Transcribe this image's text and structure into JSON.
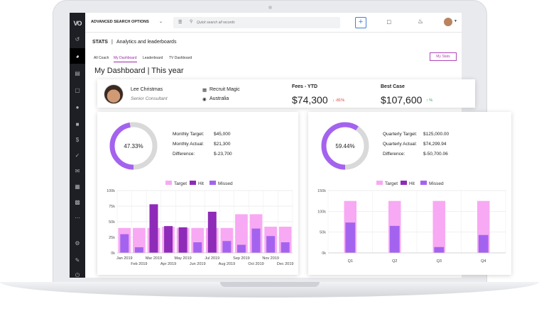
{
  "topbar": {
    "search_mode": "ADVANCED SEARCH OPTIONS",
    "search_placeholder": "Quick search all records"
  },
  "page": {
    "section": "STATS",
    "section_sub": "Analytics and leaderboards",
    "tabs": [
      "All Coach",
      "My Dashboard",
      "Leaderboard",
      "TV Dashboard"
    ],
    "active_tab": "My Dashboard",
    "my_stats_button": "My Stats",
    "dashboard_title": "My Dashboard | This year"
  },
  "profile": {
    "name": "Lee Christmas",
    "role": "Senior Consultant",
    "company": "Recruit Magic",
    "location": "Australia"
  },
  "kpis": [
    {
      "label": "Fees - YTD",
      "value": "$74,300",
      "delta": "-81%",
      "direction": "down",
      "color": "#e0322b"
    },
    {
      "label": "Best Case",
      "value": "$107,600",
      "delta": "%",
      "direction": "up",
      "color": "#2ea44f"
    }
  ],
  "monthly": {
    "percent_label": "47.33%",
    "percent": 47.33,
    "rows": [
      {
        "label": "Monthly Target:",
        "value": "$45,000"
      },
      {
        "label": "Monthly Actual:",
        "value": "$21,300"
      },
      {
        "label": "Difference:",
        "value": "$-23,700"
      }
    ]
  },
  "quarterly": {
    "percent_label": "59.44%",
    "percent": 59.44,
    "rows": [
      {
        "label": "Quarterly Target:",
        "value": "$125,000.00"
      },
      {
        "label": "Quarterly Actual:",
        "value": "$74,299.94"
      },
      {
        "label": "Difference:",
        "value": "$-50,700.06"
      }
    ]
  },
  "colors": {
    "target": "#f8a9f3",
    "hit": "#8e2bb8",
    "missed": "#a463ef",
    "ring_track": "#d9d9d9"
  },
  "chart_data": [
    {
      "type": "bar",
      "categories": [
        "Jan 2019",
        "Feb 2019",
        "Mar 2019",
        "Apr 2019",
        "May 2019",
        "Jun 2019",
        "Jul 2019",
        "Aug 2019",
        "Sep 2019",
        "Oct 2019",
        "Nov 2019",
        "Dec 2019"
      ],
      "legend": [
        "Target",
        "Hit",
        "Missed"
      ],
      "legend_position": "top",
      "yticks": [
        "0k",
        "25k",
        "50k",
        "75k",
        "100k"
      ],
      "ylim": [
        0,
        100000
      ],
      "grid": true,
      "series": [
        {
          "name": "Target",
          "values": [
            40000,
            40000,
            40000,
            42000,
            40000,
            40000,
            40000,
            40000,
            62000,
            62000,
            42000,
            42000
          ]
        },
        {
          "name": "Hit",
          "values": [
            0,
            0,
            78000,
            43000,
            41000,
            0,
            66000,
            0,
            0,
            0,
            0,
            0
          ]
        },
        {
          "name": "Missed",
          "values": [
            30000,
            9000,
            0,
            0,
            0,
            17000,
            0,
            19000,
            13000,
            39000,
            27000,
            17000
          ]
        }
      ]
    },
    {
      "type": "bar",
      "categories": [
        "Q1",
        "Q2",
        "Q3",
        "Q4"
      ],
      "legend": [
        "Target",
        "Hit",
        "Missed"
      ],
      "legend_position": "top",
      "yticks": [
        "0k",
        "50k",
        "100k",
        "150k"
      ],
      "ylim": [
        0,
        150000
      ],
      "grid": true,
      "series": [
        {
          "name": "Target",
          "values": [
            125000,
            125000,
            125000,
            125000
          ]
        },
        {
          "name": "Hit",
          "values": [
            0,
            0,
            0,
            0
          ]
        },
        {
          "name": "Missed",
          "values": [
            73000,
            65000,
            14000,
            43000
          ]
        }
      ]
    }
  ]
}
